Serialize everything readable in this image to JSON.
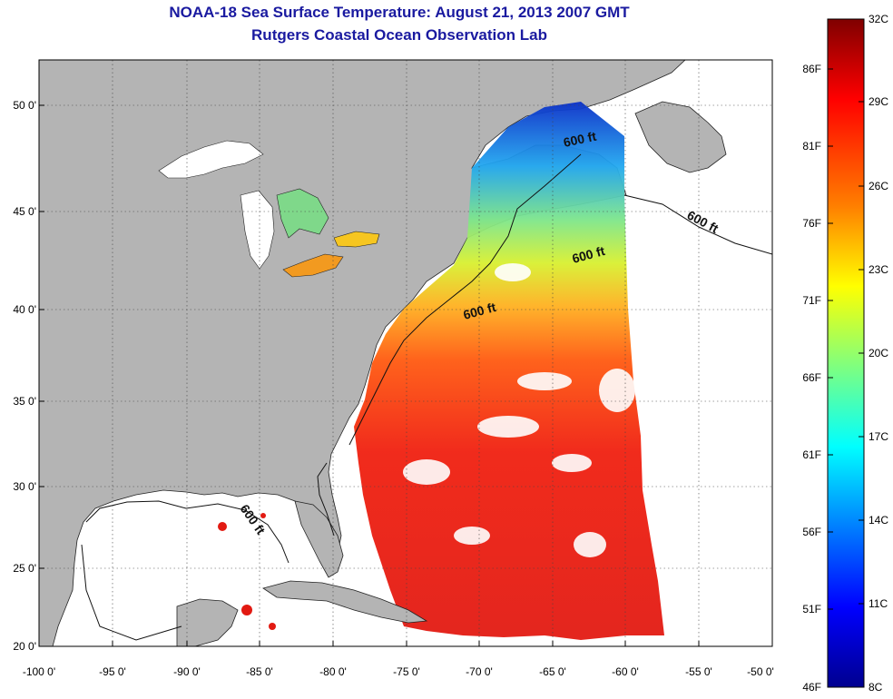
{
  "header": {
    "title": "NOAA-18 Sea Surface Temperature:  August 21, 2013 2007 GMT",
    "subtitle": "Rutgers Coastal Ocean Observation Lab"
  },
  "map": {
    "lon_ticks": [
      "-100 0'",
      "-95 0'",
      "-90 0'",
      "-85 0'",
      "-80 0'",
      "-75 0'",
      "-70 0'",
      "-65 0'",
      "-60 0'",
      "-55 0'",
      "-50 0'"
    ],
    "lat_ticks": [
      "50 0'",
      "45 0'",
      "40 0'",
      "35 0'",
      "30 0'",
      "25 0'",
      "20 0'"
    ],
    "isobath_labels": [
      "600 ft",
      "600 ft",
      "600 ft",
      "600 ft",
      "600 ft"
    ],
    "land_color": "#b4b4b4",
    "nodata_color": "#ffffff"
  },
  "colorbar": {
    "celsius_labels": [
      "32C",
      "29C",
      "26C",
      "23C",
      "20C",
      "17C",
      "14C",
      "11C",
      "8C"
    ],
    "fahrenheit_labels": [
      "86F",
      "81F",
      "76F",
      "71F",
      "66F",
      "61F",
      "56F",
      "51F",
      "46F"
    ],
    "colors": [
      "#7f0000",
      "#ff0000",
      "#ff7f00",
      "#ffff00",
      "#7fff7f",
      "#00ffff",
      "#007fff",
      "#0000ff",
      "#00008f"
    ]
  }
}
